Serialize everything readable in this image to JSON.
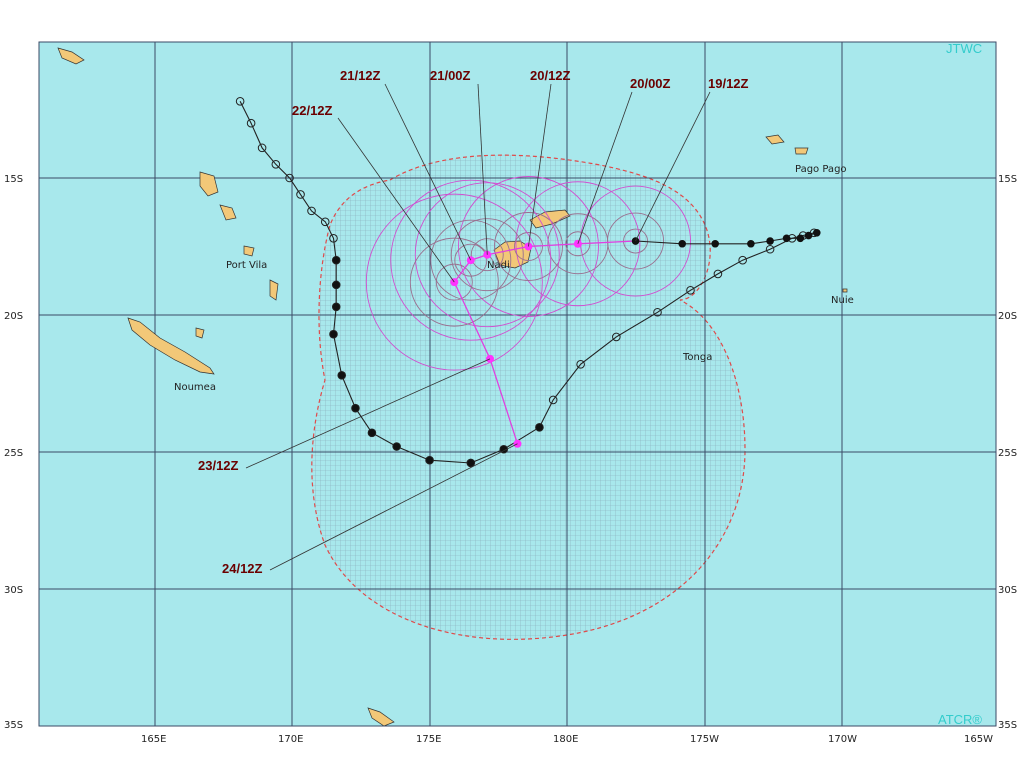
{
  "header": {
    "agency": "JTWC"
  },
  "footer": {
    "credit": "ATCR®"
  },
  "colors": {
    "ocean": "#a8e8ec",
    "land": "#f2c878",
    "grid": "#3a4a66",
    "past_track": "#222222",
    "forecast_track": "#e040e0",
    "danger_area": "#e04a4a",
    "label": "#6b0000",
    "corner_text": "#33cccc"
  },
  "axes": {
    "lat_labels": [
      "15S",
      "20S",
      "25S",
      "30S",
      "35S"
    ],
    "lon_labels": [
      "165E",
      "170E",
      "175E",
      "180E",
      "175W",
      "170W",
      "165W"
    ]
  },
  "places": [
    {
      "name": "Port Vila",
      "lon": 168.3,
      "lat": -17.7
    },
    {
      "name": "Noumea",
      "lon": 166.5,
      "lat": -22.3
    },
    {
      "name": "Nadi",
      "lon": 177.4,
      "lat": -17.8
    },
    {
      "name": "Pago Pago",
      "lon": -170.7,
      "lat": -14.3
    },
    {
      "name": "Nuie",
      "lon": -169.9,
      "lat": -19.1
    },
    {
      "name": "Tonga",
      "lon": -175.2,
      "lat": -21.2
    }
  ],
  "forecast_positions": [
    {
      "dtg": "19/12Z",
      "lon": 182.5,
      "lat": -17.3
    },
    {
      "dtg": "20/00Z",
      "lon": 180.4,
      "lat": -17.4
    },
    {
      "dtg": "20/12Z",
      "lon": 178.6,
      "lat": -17.5
    },
    {
      "dtg": "21/00Z",
      "lon": 177.1,
      "lat": -17.8
    },
    {
      "dtg": "21/12Z",
      "lon": 176.5,
      "lat": -18.0
    },
    {
      "dtg": "22/12Z",
      "lon": 175.9,
      "lat": -18.8
    },
    {
      "dtg": "23/12Z",
      "lon": 177.2,
      "lat": -21.6
    },
    {
      "dtg": "24/12Z",
      "lon": 178.2,
      "lat": -24.7
    }
  ],
  "past_track_east": [
    [
      189.1,
      -17.0
    ],
    [
      188.8,
      -17.1
    ],
    [
      188.5,
      -17.2
    ],
    [
      188.0,
      -17.2
    ],
    [
      187.4,
      -17.3
    ],
    [
      186.7,
      -17.4
    ],
    [
      185.4,
      -17.4
    ],
    [
      184.2,
      -17.4
    ],
    [
      182.5,
      -17.3
    ]
  ],
  "past_track_west": [
    [
      168.1,
      -12.2
    ],
    [
      168.5,
      -13.0
    ],
    [
      168.9,
      -13.9
    ],
    [
      169.4,
      -14.5
    ],
    [
      169.9,
      -15.0
    ],
    [
      170.3,
      -15.6
    ],
    [
      170.7,
      -16.2
    ],
    [
      171.2,
      -16.6
    ],
    [
      171.5,
      -17.2
    ],
    [
      171.6,
      -18.0
    ],
    [
      171.6,
      -18.9
    ],
    [
      171.6,
      -19.7
    ],
    [
      171.5,
      -20.7
    ],
    [
      171.8,
      -22.2
    ],
    [
      172.3,
      -23.4
    ],
    [
      172.9,
      -24.3
    ],
    [
      173.8,
      -24.8
    ],
    [
      175.0,
      -25.3
    ],
    [
      176.5,
      -25.4
    ],
    [
      177.7,
      -24.9
    ],
    [
      179.0,
      -24.1
    ],
    [
      179.5,
      -23.1
    ],
    [
      180.5,
      -21.8
    ],
    [
      181.8,
      -20.8
    ],
    [
      183.3,
      -19.9
    ],
    [
      184.5,
      -19.1
    ],
    [
      185.5,
      -18.5
    ],
    [
      186.4,
      -18.0
    ],
    [
      187.4,
      -17.6
    ],
    [
      188.2,
      -17.2
    ],
    [
      188.6,
      -17.1
    ],
    [
      189.0,
      -17.0
    ]
  ]
}
